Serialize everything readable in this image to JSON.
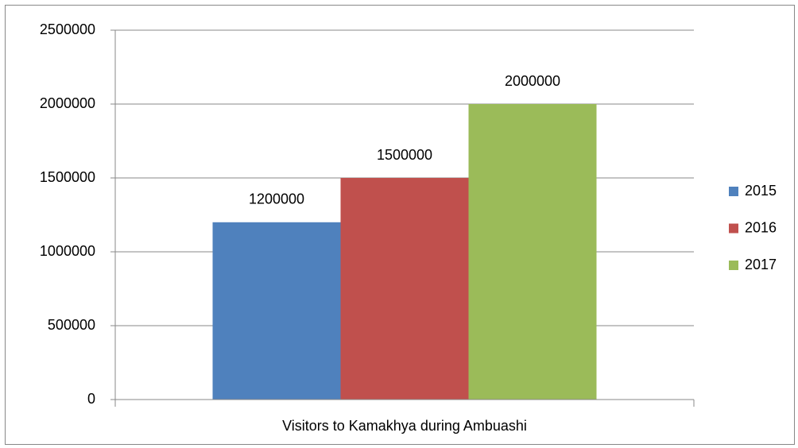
{
  "chart_data": {
    "type": "bar",
    "categories": [
      "Visitors to Kamakhya during Ambuashi"
    ],
    "series": [
      {
        "name": "2015",
        "color": "#4f81bd",
        "values": [
          1200000
        ]
      },
      {
        "name": "2016",
        "color": "#c0504d",
        "values": [
          1500000
        ]
      },
      {
        "name": "2017",
        "color": "#9bbb59",
        "values": [
          2000000
        ]
      }
    ],
    "ylim": [
      0,
      2500000
    ],
    "yticks": [
      0,
      500000,
      1000000,
      1500000,
      2000000,
      2500000
    ],
    "grid": true,
    "legend": "right",
    "data_labels": true
  }
}
